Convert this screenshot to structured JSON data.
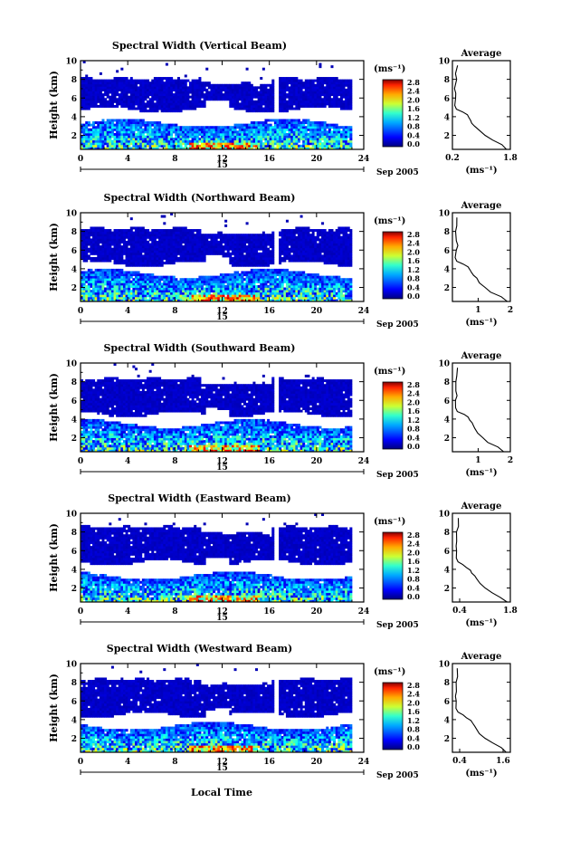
{
  "figure": {
    "xlabel_bottom": "Local Time",
    "date_label": "Sep 2005",
    "day_label": "15",
    "colorbar_unit": "(ms⁻¹)",
    "avg_title": "Average",
    "avg_xlabel": "(ms⁻¹)"
  },
  "chart_data": [
    {
      "type": "heatmap",
      "title": "Spectral Width (Vertical Beam)",
      "ylabel": "Height (km)",
      "x_ticks": [
        0,
        4,
        8,
        12,
        16,
        20,
        24
      ],
      "y_ticks": [
        2,
        4,
        6,
        8,
        10
      ],
      "xlim": [
        0,
        24
      ],
      "ylim": [
        0.5,
        10
      ],
      "colorbar": {
        "ticks": [
          "2.8",
          "2.4",
          "2.0",
          "1.6",
          "1.2",
          "0.8",
          "0.4",
          "0.0"
        ],
        "range": [
          0,
          2.8
        ]
      },
      "layers": [
        {
          "name": "upper",
          "height_range_km": [
            4.6,
            8.2
          ],
          "typical_width": 0.15,
          "gap_hours": [
            [
              16.3,
              16.7
            ]
          ]
        },
        {
          "name": "lower",
          "height_range_km": [
            0.5,
            3.6
          ],
          "typical_width": 0.9,
          "max_width": 2.8
        }
      ],
      "average_profile": {
        "xlim": [
          0.2,
          1.8
        ],
        "x_ticks": [
          0.2,
          1.8
        ],
        "y_ticks": [
          2,
          4,
          6,
          8,
          10
        ],
        "x": [
          1.7,
          1.55,
          1.3,
          1.1,
          0.95,
          0.8,
          0.75,
          0.7,
          0.65,
          0.6,
          0.5,
          0.3,
          0.25,
          0.3,
          0.3,
          0.25,
          0.3,
          0.3,
          0.35
        ],
        "y": [
          0.5,
          1,
          1.5,
          2,
          2.5,
          3,
          3.3,
          3.6,
          3.9,
          4.2,
          4.5,
          4.8,
          5.2,
          6,
          6.5,
          7,
          8,
          8.6,
          9.5
        ]
      }
    },
    {
      "type": "heatmap",
      "title": "Spectral Width (Northward Beam)",
      "ylabel": "Height (km)",
      "x_ticks": [
        0,
        4,
        8,
        12,
        16,
        20,
        24
      ],
      "y_ticks": [
        2,
        4,
        6,
        8,
        10
      ],
      "xlim": [
        0,
        24
      ],
      "ylim": [
        0.5,
        10
      ],
      "colorbar": {
        "ticks": [
          "2.8",
          "2.4",
          "2.0",
          "1.6",
          "1.2",
          "0.8",
          "0.4",
          "0.0"
        ],
        "range": [
          0,
          2.8
        ]
      },
      "layers": [
        {
          "name": "upper",
          "height_range_km": [
            4.4,
            8.4
          ],
          "typical_width": 0.15,
          "gap_hours": [
            [
              16.3,
              16.7
            ]
          ]
        },
        {
          "name": "lower",
          "height_range_km": [
            0.5,
            3.8
          ],
          "typical_width": 0.9,
          "max_width": 2.8
        }
      ],
      "average_profile": {
        "xlim": [
          0.2,
          2.0
        ],
        "x_ticks": [
          1,
          2
        ],
        "y_ticks": [
          2,
          4,
          6,
          8,
          10
        ],
        "x": [
          1.9,
          1.7,
          1.4,
          1.2,
          1.05,
          0.95,
          0.85,
          0.8,
          0.75,
          0.7,
          0.55,
          0.35,
          0.3,
          0.3,
          0.35,
          0.3,
          0.3,
          0.35,
          0.35
        ],
        "y": [
          0.5,
          1,
          1.5,
          2,
          2.5,
          3,
          3.3,
          3.6,
          3.9,
          4.2,
          4.5,
          4.8,
          5.2,
          6,
          6.5,
          7,
          8,
          8.6,
          9.5
        ]
      }
    },
    {
      "type": "heatmap",
      "title": "Spectral Width (Southward Beam)",
      "ylabel": "Height (km)",
      "x_ticks": [
        0,
        4,
        8,
        12,
        16,
        20,
        24
      ],
      "y_ticks": [
        2,
        4,
        6,
        8,
        10
      ],
      "xlim": [
        0,
        24
      ],
      "ylim": [
        0.5,
        10
      ],
      "colorbar": {
        "ticks": [
          "2.8",
          "2.4",
          "2.0",
          "1.6",
          "1.2",
          "0.8",
          "0.4",
          "0.0"
        ],
        "range": [
          0,
          2.8
        ]
      },
      "layers": [
        {
          "name": "upper",
          "height_range_km": [
            4.4,
            8.4
          ],
          "typical_width": 0.15,
          "gap_hours": [
            [
              16.3,
              16.7
            ]
          ]
        },
        {
          "name": "lower",
          "height_range_km": [
            0.5,
            3.8
          ],
          "typical_width": 0.85,
          "max_width": 2.8
        }
      ],
      "average_profile": {
        "xlim": [
          0.2,
          2.0
        ],
        "x_ticks": [
          1,
          2
        ],
        "y_ticks": [
          2,
          4,
          6,
          8,
          10
        ],
        "x": [
          1.8,
          1.6,
          1.3,
          1.15,
          1.0,
          0.9,
          0.85,
          0.8,
          0.75,
          0.7,
          0.55,
          0.35,
          0.3,
          0.3,
          0.35,
          0.3,
          0.3,
          0.35,
          0.35
        ],
        "y": [
          0.5,
          1,
          1.5,
          2,
          2.5,
          3,
          3.3,
          3.6,
          3.9,
          4.2,
          4.5,
          4.8,
          5.2,
          6,
          6.5,
          7,
          8,
          8.6,
          9.5
        ]
      }
    },
    {
      "type": "heatmap",
      "title": "Spectral Width (Eastward Beam)",
      "ylabel": "Height (km)",
      "x_ticks": [
        0,
        4,
        8,
        12,
        16,
        20,
        24
      ],
      "y_ticks": [
        2,
        4,
        6,
        8,
        10
      ],
      "xlim": [
        0,
        24
      ],
      "ylim": [
        0.5,
        10
      ],
      "colorbar": {
        "ticks": [
          "2.8",
          "2.4",
          "2.0",
          "1.6",
          "1.2",
          "0.8",
          "0.4",
          "0.0"
        ],
        "range": [
          0,
          2.8
        ]
      },
      "layers": [
        {
          "name": "upper",
          "height_range_km": [
            4.6,
            8.6
          ],
          "typical_width": 0.15,
          "gap_hours": [
            [
              16.3,
              16.7
            ]
          ]
        },
        {
          "name": "lower",
          "height_range_km": [
            0.5,
            3.6
          ],
          "typical_width": 0.9,
          "max_width": 2.8
        }
      ],
      "average_profile": {
        "xlim": [
          0.2,
          1.8
        ],
        "x_ticks": [
          0.4,
          1.8
        ],
        "y_ticks": [
          2,
          4,
          6,
          8,
          10
        ],
        "x": [
          1.7,
          1.5,
          1.3,
          1.1,
          0.95,
          0.85,
          0.8,
          0.75,
          0.7,
          0.6,
          0.5,
          0.35,
          0.3,
          0.3,
          0.3,
          0.3,
          0.3,
          0.35,
          0.35
        ],
        "y": [
          0.5,
          1,
          1.5,
          2,
          2.5,
          3,
          3.3,
          3.6,
          3.9,
          4.2,
          4.5,
          4.8,
          5.2,
          6,
          6.5,
          7,
          8,
          8.6,
          9.5
        ]
      }
    },
    {
      "type": "heatmap",
      "title": "Spectral Width (Westward Beam)",
      "ylabel": "Height (km)",
      "x_ticks": [
        0,
        4,
        8,
        12,
        16,
        20,
        24
      ],
      "y_ticks": [
        2,
        4,
        6,
        8,
        10
      ],
      "xlim": [
        0,
        24
      ],
      "ylim": [
        0.5,
        10
      ],
      "colorbar": {
        "ticks": [
          "2.8",
          "2.4",
          "2.0",
          "1.6",
          "1.2",
          "0.8",
          "0.4",
          "0.0"
        ],
        "range": [
          0,
          2.8
        ]
      },
      "layers": [
        {
          "name": "upper",
          "height_range_km": [
            4.4,
            8.4
          ],
          "typical_width": 0.15,
          "gap_hours": [
            [
              16.3,
              16.7
            ]
          ]
        },
        {
          "name": "lower",
          "height_range_km": [
            0.5,
            3.6
          ],
          "typical_width": 0.9,
          "max_width": 2.8
        }
      ],
      "average_profile": {
        "xlim": [
          0.2,
          1.8
        ],
        "x_ticks": [
          0.4,
          1.6
        ],
        "y_ticks": [
          2,
          4,
          6,
          8,
          10
        ],
        "x": [
          1.7,
          1.55,
          1.3,
          1.1,
          0.95,
          0.85,
          0.8,
          0.75,
          0.7,
          0.6,
          0.5,
          0.35,
          0.3,
          0.3,
          0.3,
          0.3,
          0.3,
          0.35,
          0.35
        ],
        "y": [
          0.5,
          1,
          1.5,
          2,
          2.5,
          3,
          3.3,
          3.6,
          3.9,
          4.2,
          4.5,
          4.8,
          5.2,
          6,
          6.5,
          7,
          8,
          8.6,
          9.5
        ]
      }
    }
  ]
}
